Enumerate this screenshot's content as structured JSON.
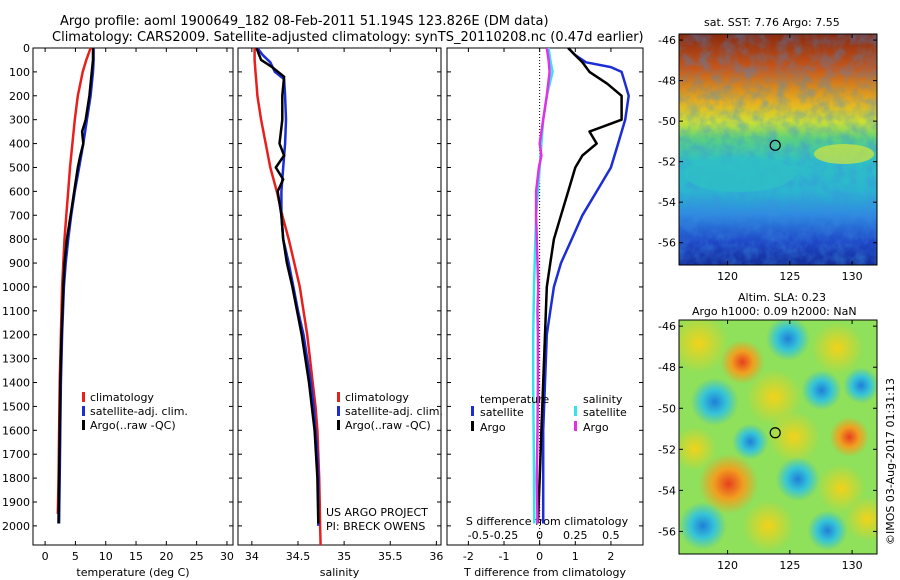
{
  "titles": {
    "line1": "Argo profile: aoml 1900649_182 08-Feb-2011 51.194S 123.826E (DM data)",
    "line2": "Climatology: CARS2009. Satellite-adjusted climatology: synTS_20110208.nc (0.47d earlier)"
  },
  "credit": "©IMOS 03-Aug-2017 01:31:13",
  "colors": {
    "red": "#e8201b",
    "blue": "#1c2dd6",
    "black": "#000000",
    "cyan": "#33e4ee",
    "magenta": "#e62ee6"
  },
  "chart_data": [
    {
      "type": "line",
      "xlabel": "temperature (deg C)",
      "xlim": [
        -2,
        31
      ],
      "xticks": [
        0,
        5,
        10,
        15,
        20,
        25,
        30
      ],
      "ylim": [
        0,
        2080
      ],
      "yticks": [
        0,
        100,
        200,
        300,
        400,
        500,
        600,
        700,
        800,
        900,
        1000,
        1100,
        1200,
        1300,
        1400,
        1500,
        1600,
        1700,
        1800,
        1900,
        2000
      ],
      "legend": [
        "climatology",
        "satellite-adj. clim.",
        "Argo(..raw -QC)"
      ],
      "legend_colors": [
        "red",
        "blue",
        "black"
      ],
      "series": [
        {
          "name": "climatology",
          "color": "red",
          "depth": [
            0,
            50,
            100,
            150,
            200,
            300,
            400,
            500,
            600,
            700,
            800,
            900,
            1000,
            1200,
            1400,
            1600,
            1800,
            1950
          ],
          "values": [
            7.5,
            6.8,
            6.2,
            5.8,
            5.4,
            4.9,
            4.5,
            4.1,
            3.8,
            3.5,
            3.2,
            3.0,
            2.8,
            2.6,
            2.4,
            2.3,
            2.2,
            2.1
          ]
        },
        {
          "name": "satellite-adj. clim.",
          "color": "blue",
          "depth": [
            0,
            50,
            100,
            150,
            200,
            300,
            400,
            500,
            600,
            700,
            800,
            900,
            1000,
            1200,
            1400,
            1600,
            1800,
            1990
          ],
          "values": [
            8.0,
            8.0,
            7.9,
            7.7,
            7.5,
            6.9,
            6.3,
            5.6,
            4.9,
            4.3,
            3.8,
            3.4,
            3.1,
            2.8,
            2.6,
            2.5,
            2.4,
            2.3
          ]
        },
        {
          "name": "Argo(..raw -QC)",
          "color": "black",
          "depth": [
            0,
            50,
            100,
            150,
            200,
            300,
            350,
            400,
            450,
            500,
            600,
            700,
            800,
            900,
            1000,
            1200,
            1400,
            1600,
            1800,
            1990
          ],
          "values": [
            7.9,
            7.9,
            7.7,
            7.5,
            7.3,
            6.7,
            6.1,
            6.3,
            5.8,
            5.4,
            4.8,
            4.2,
            3.6,
            3.2,
            3.0,
            2.7,
            2.5,
            2.4,
            2.3,
            2.2
          ]
        }
      ]
    },
    {
      "type": "line",
      "xlabel": "salinity",
      "xlim": [
        33.85,
        36.05
      ],
      "xticks": [
        34,
        34.5,
        35,
        35.5,
        36
      ],
      "xticklabels": [
        "34",
        "34.5",
        "35",
        "35.5",
        "36"
      ],
      "ylim": [
        0,
        2080
      ],
      "legend": [
        "climatology",
        "satellite-adj. clim.",
        "Argo(..raw -QC)"
      ],
      "legend_colors": [
        "red",
        "blue",
        "black"
      ],
      "annotation": [
        "US ARGO PROJECT",
        "PI: BRECK OWENS"
      ],
      "series": [
        {
          "name": "climatology",
          "color": "red",
          "depth": [
            0,
            50,
            100,
            150,
            200,
            300,
            400,
            500,
            600,
            700,
            800,
            900,
            1000,
            1100,
            1200,
            1300,
            1400,
            1500,
            1600,
            1700,
            1800,
            1900,
            2000,
            2080
          ],
          "values": [
            34.03,
            34.03,
            34.04,
            34.05,
            34.06,
            34.1,
            34.15,
            34.2,
            34.27,
            34.33,
            34.4,
            34.46,
            34.52,
            34.56,
            34.6,
            34.63,
            34.66,
            34.69,
            34.71,
            34.72,
            34.73,
            34.735,
            34.74,
            34.745
          ]
        },
        {
          "name": "satellite-adj. clim.",
          "color": "blue",
          "depth": [
            0,
            30,
            60,
            100,
            130,
            200,
            300,
            400,
            500,
            600,
            700,
            800,
            900,
            1000,
            1100,
            1200,
            1300,
            1400,
            1500,
            1600,
            1700,
            1800,
            1900,
            2000
          ],
          "values": [
            34.06,
            34.12,
            34.2,
            34.25,
            34.35,
            34.36,
            34.37,
            34.36,
            34.34,
            34.32,
            34.32,
            34.34,
            34.4,
            34.45,
            34.5,
            34.56,
            34.6,
            34.64,
            34.67,
            34.69,
            34.71,
            34.72,
            34.72,
            34.72
          ]
        },
        {
          "name": "Argo(..raw -QC)",
          "color": "black",
          "depth": [
            0,
            50,
            80,
            120,
            200,
            300,
            400,
            450,
            500,
            550,
            600,
            700,
            800,
            900,
            1000,
            1200,
            1400,
            1600,
            1800,
            1990
          ],
          "values": [
            34.05,
            34.1,
            34.22,
            34.35,
            34.33,
            34.33,
            34.3,
            34.35,
            34.26,
            34.34,
            34.28,
            34.32,
            34.34,
            34.38,
            34.44,
            34.54,
            34.62,
            34.68,
            34.71,
            34.72
          ]
        }
      ]
    },
    {
      "type": "line",
      "xlabel": "T difference from climatology",
      "xlabel_top": "S difference from climatology",
      "xlim": [
        -2.6,
        2.9
      ],
      "xticks": [
        -2,
        -1,
        0,
        1,
        2
      ],
      "xticklabels": [
        "-2",
        "-1",
        "0",
        "1",
        "2"
      ],
      "secondary_xticklabels": [
        "-0.5",
        "-0.25",
        "0",
        "0.25",
        "0.5"
      ],
      "ylim": [
        0,
        2080
      ],
      "legend": {
        "temperature": [
          "satellite",
          "Argo"
        ],
        "salinity": [
          "satellite",
          "Argo"
        ]
      },
      "legend_titles": [
        "temperature",
        "salinity"
      ],
      "series": [
        {
          "name": "temperature satellite",
          "color": "blue",
          "depth": [
            0,
            30,
            60,
            80,
            100,
            150,
            200,
            300,
            400,
            500,
            600,
            700,
            800,
            900,
            1000,
            1100,
            1200,
            1400,
            1600,
            1800,
            1990
          ],
          "values": [
            0.8,
            1.0,
            1.3,
            2.0,
            2.3,
            2.4,
            2.5,
            2.4,
            2.2,
            2.0,
            1.6,
            1.2,
            0.9,
            0.6,
            0.4,
            0.3,
            0.2,
            0.15,
            0.1,
            0.1,
            0.1
          ]
        },
        {
          "name": "temperature Argo",
          "color": "black",
          "depth": [
            0,
            30,
            60,
            100,
            150,
            200,
            300,
            350,
            400,
            450,
            500,
            600,
            700,
            800,
            900,
            1000,
            1200,
            1400,
            1600,
            1800,
            1990
          ],
          "values": [
            0.8,
            1.0,
            1.2,
            1.4,
            1.9,
            2.3,
            2.3,
            1.4,
            1.6,
            1.2,
            1.0,
            0.8,
            0.6,
            0.4,
            0.3,
            0.2,
            0.15,
            0.1,
            0.05,
            0.0,
            -0.05
          ]
        },
        {
          "name": "salinity satellite",
          "color": "cyan",
          "depth": [
            0,
            50,
            100,
            200,
            300,
            400,
            500,
            600,
            700,
            800,
            900,
            1000,
            1200,
            1400,
            1600,
            1800,
            1990
          ],
          "values": [
            0.25,
            0.3,
            0.36,
            0.2,
            0.1,
            0.05,
            0.0,
            -0.05,
            -0.1,
            -0.12,
            -0.14,
            -0.16,
            -0.18,
            -0.18,
            -0.17,
            -0.16,
            -0.15
          ]
        },
        {
          "name": "salinity Argo",
          "color": "magenta",
          "depth": [
            0,
            50,
            100,
            200,
            300,
            400,
            450,
            500,
            600,
            700,
            800,
            900,
            1000,
            1100,
            1200,
            1400,
            1600,
            1800,
            1990
          ],
          "values": [
            0.2,
            0.25,
            0.28,
            0.2,
            0.1,
            0.0,
            0.05,
            -0.02,
            -0.1,
            -0.1,
            -0.08,
            -0.06,
            -0.04,
            -0.06,
            -0.05,
            -0.05,
            -0.06,
            -0.08,
            -0.06
          ]
        }
      ]
    },
    {
      "type": "heatmap",
      "title": "sat. SST: 7.76 Argo: 7.55",
      "xticks": [
        120,
        125,
        130
      ],
      "xlim": [
        116.1,
        132
      ],
      "yticks": [
        -46,
        -48,
        -50,
        -52,
        -54,
        -56
      ],
      "ylim": [
        -57.1,
        -45.7
      ],
      "marker": {
        "lon": 123.826,
        "lat": -51.194
      }
    },
    {
      "type": "heatmap",
      "title_lines": [
        "Altim. SLA: 0.23",
        "Argo h1000: 0.09 h2000: NaN"
      ],
      "xticks": [
        120,
        125,
        130
      ],
      "xlim": [
        116.1,
        132
      ],
      "yticks": [
        -46,
        -48,
        -50,
        -52,
        -54,
        -56
      ],
      "ylim": [
        -57.1,
        -45.7
      ],
      "marker": {
        "lon": 123.826,
        "lat": -51.194
      }
    }
  ]
}
